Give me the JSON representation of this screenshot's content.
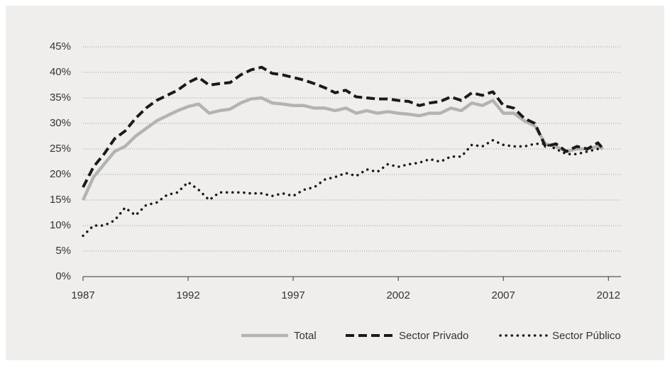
{
  "chart_data": {
    "type": "line",
    "x": [
      1987,
      1987.5,
      1988,
      1988.5,
      1989,
      1989.5,
      1990,
      1990.5,
      1991,
      1991.5,
      1992,
      1992.5,
      1993,
      1993.5,
      1994,
      1994.5,
      1995,
      1995.5,
      1996,
      1996.5,
      1997,
      1997.5,
      1998,
      1998.5,
      1999,
      1999.5,
      2000,
      2000.5,
      2001,
      2001.5,
      2002,
      2002.5,
      2003,
      2003.5,
      2004,
      2004.5,
      2005,
      2005.5,
      2006,
      2006.5,
      2007,
      2007.5,
      2008,
      2008.5,
      2009,
      2009.5,
      2010,
      2010.5,
      2011,
      2011.5,
      2011.75
    ],
    "series": [
      {
        "name": "Total",
        "color": "#b3b3b3",
        "style": "solid",
        "values": [
          15,
          19.5,
          22,
          24.5,
          25.5,
          27.5,
          29,
          30.5,
          31.5,
          32.5,
          33.3,
          33.8,
          32,
          32.5,
          32.8,
          34,
          34.8,
          35,
          34,
          33.8,
          33.5,
          33.5,
          33,
          33,
          32.5,
          33,
          32,
          32.5,
          32,
          32.3,
          32,
          31.8,
          31.5,
          32,
          32,
          33,
          32.5,
          34,
          33.5,
          34.5,
          32,
          32,
          30.5,
          29.5,
          26,
          25.5,
          24.5,
          25,
          25,
          25.5,
          25
        ]
      },
      {
        "name": "Sector Privado",
        "color": "#1a1a1a",
        "style": "dashed",
        "values": [
          17.5,
          21.5,
          24,
          27,
          28.5,
          31,
          33,
          34.5,
          35.5,
          36.5,
          38,
          39,
          37.5,
          37.8,
          38,
          39.5,
          40.5,
          41,
          39.8,
          39.5,
          39,
          38.5,
          37.8,
          37,
          36,
          36.5,
          35.2,
          35,
          34.8,
          34.8,
          34.5,
          34.3,
          33.5,
          34,
          34.3,
          35.2,
          34.5,
          36,
          35.5,
          36.2,
          33.5,
          33,
          31,
          30,
          25.5,
          26,
          24.5,
          25.5,
          25,
          26.2,
          25
        ]
      },
      {
        "name": "Sector Público",
        "color": "#1a1a1a",
        "style": "dotted",
        "values": [
          8,
          10,
          10,
          11,
          13.5,
          12,
          14,
          14.5,
          16,
          16.5,
          18.5,
          17,
          15,
          16.5,
          16.5,
          16.5,
          16.3,
          16.3,
          15.8,
          16.3,
          15.8,
          17,
          17.5,
          19,
          19.5,
          20.3,
          19.7,
          21,
          20.5,
          22,
          21.5,
          22,
          22.3,
          23,
          22.5,
          23.5,
          23.5,
          25.8,
          25.5,
          26.7,
          25.8,
          25.5,
          25.5,
          26,
          26,
          25,
          24,
          24,
          24.5,
          25,
          25
        ]
      }
    ],
    "xlim": [
      1987,
      2012.6
    ],
    "xticks": [
      1987,
      1992,
      1997,
      2002,
      2007,
      2012
    ],
    "ylim": [
      0,
      45
    ],
    "yticks": [
      {
        "value": 0,
        "label": "0%"
      },
      {
        "value": 5,
        "label": "5%"
      },
      {
        "value": 10,
        "label": "10%"
      },
      {
        "value": 15,
        "label": "15%"
      },
      {
        "value": 20,
        "label": "20%"
      },
      {
        "value": 25,
        "label": "25%"
      },
      {
        "value": 30,
        "label": "30%"
      },
      {
        "value": 35,
        "label": "35%"
      },
      {
        "value": 40,
        "label": "40%"
      },
      {
        "value": 45,
        "label": "45%"
      }
    ],
    "grid": true,
    "legend": "bottom"
  }
}
